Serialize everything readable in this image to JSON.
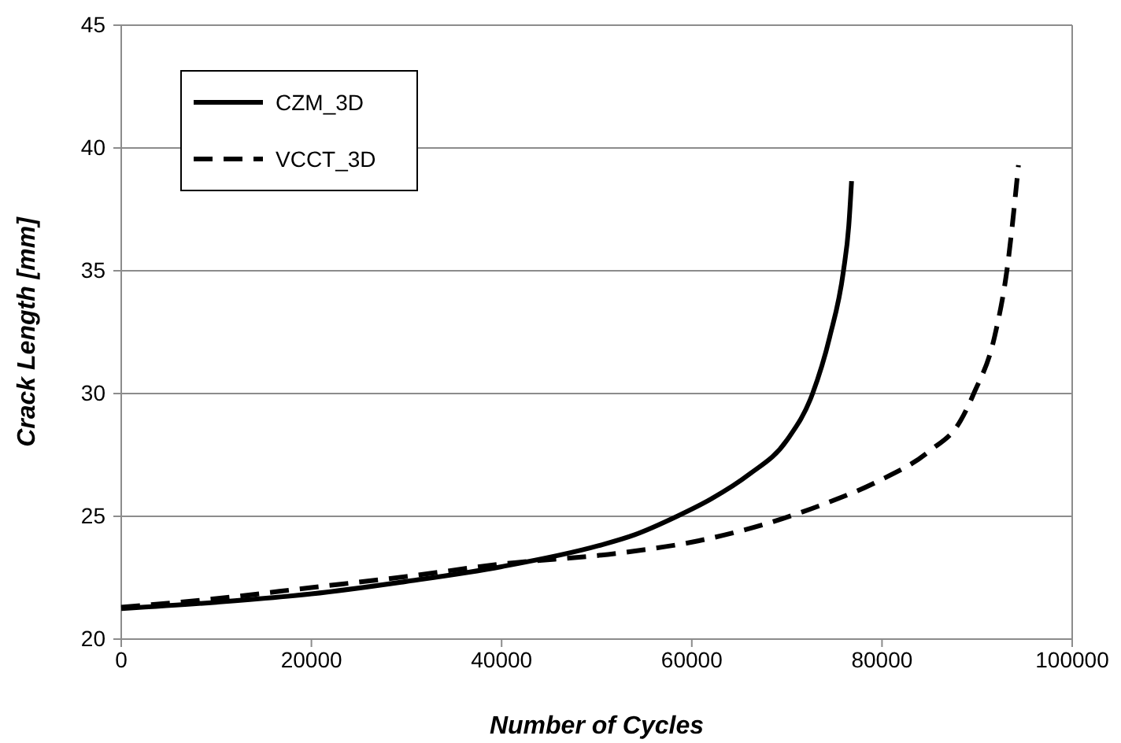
{
  "chart_data": {
    "type": "line",
    "xlabel": "Number of Cycles",
    "ylabel": "Crack Length [mm]",
    "xlim": [
      0,
      100000
    ],
    "xticks": [
      0,
      20000,
      40000,
      60000,
      80000,
      100000
    ],
    "ylim": [
      20,
      45
    ],
    "yticks": [
      20,
      25,
      30,
      35,
      40,
      45
    ],
    "grid": "y",
    "legend": "top left",
    "marker": "none",
    "series": [
      {
        "name": "CZM_3D",
        "color": "#000000",
        "line_style": "solid",
        "x": [
          0,
          10000,
          20000,
          30000,
          40000,
          50160,
          54000,
          58440,
          62000,
          66000,
          70000,
          72700,
          74500,
          75950,
          76500,
          76800
        ],
        "values": [
          21.24,
          21.5,
          21.84,
          22.35,
          22.95,
          23.8,
          24.25,
          25,
          25.7,
          26.7,
          28.1,
          30,
          32.3,
          35,
          36.8,
          38.65
        ]
      },
      {
        "name": "VCCT_3D",
        "color": "#000000",
        "line_style": "dashed",
        "x": [
          0,
          10000,
          20000,
          30000,
          40000,
          52300,
          60650,
          69500,
          73900,
          79440,
          84950,
          88270,
          89650,
          91860,
          93130,
          94350
        ],
        "values": [
          21.3,
          21.65,
          22.1,
          22.55,
          23.06,
          23.5,
          24.0,
          24.9,
          25.5,
          26.4,
          27.65,
          28.9,
          30,
          32.35,
          35,
          39.3
        ]
      }
    ]
  }
}
